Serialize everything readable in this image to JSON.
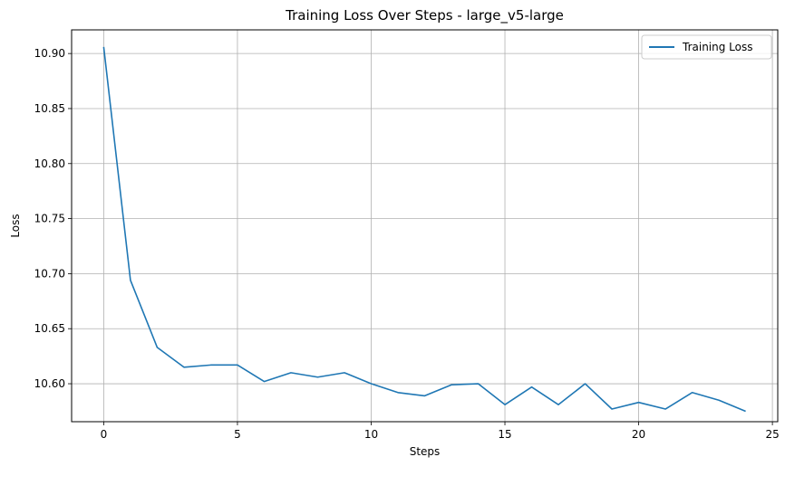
{
  "chart_data": {
    "type": "line",
    "title": "Training Loss Over Steps - large_v5-large",
    "xlabel": "Steps",
    "ylabel": "Loss",
    "xlim": [
      -1.2,
      25.2
    ],
    "ylim": [
      10.5655,
      10.9215
    ],
    "xticks": [
      0,
      5,
      10,
      15,
      20,
      25
    ],
    "yticks": [
      10.6,
      10.65,
      10.7,
      10.75,
      10.8,
      10.85,
      10.9
    ],
    "xtick_labels": [
      "0",
      "5",
      "10",
      "15",
      "20",
      "25"
    ],
    "ytick_labels": [
      "10.60",
      "10.65",
      "10.70",
      "10.75",
      "10.80",
      "10.85",
      "10.90"
    ],
    "grid": true,
    "legend_position": "top-right",
    "series": [
      {
        "name": "Training Loss",
        "color": "#1f77b4",
        "x": [
          0,
          1,
          2,
          3,
          4,
          5,
          6,
          7,
          8,
          9,
          10,
          11,
          12,
          13,
          14,
          15,
          16,
          17,
          18,
          19,
          20,
          21,
          22,
          23,
          24
        ],
        "y": [
          10.906,
          10.694,
          10.633,
          10.615,
          10.617,
          10.617,
          10.602,
          10.61,
          10.606,
          10.61,
          10.6,
          10.592,
          10.589,
          10.599,
          10.6,
          10.581,
          10.597,
          10.581,
          10.6,
          10.577,
          10.583,
          10.577,
          10.592,
          10.585,
          10.575
        ]
      }
    ]
  }
}
